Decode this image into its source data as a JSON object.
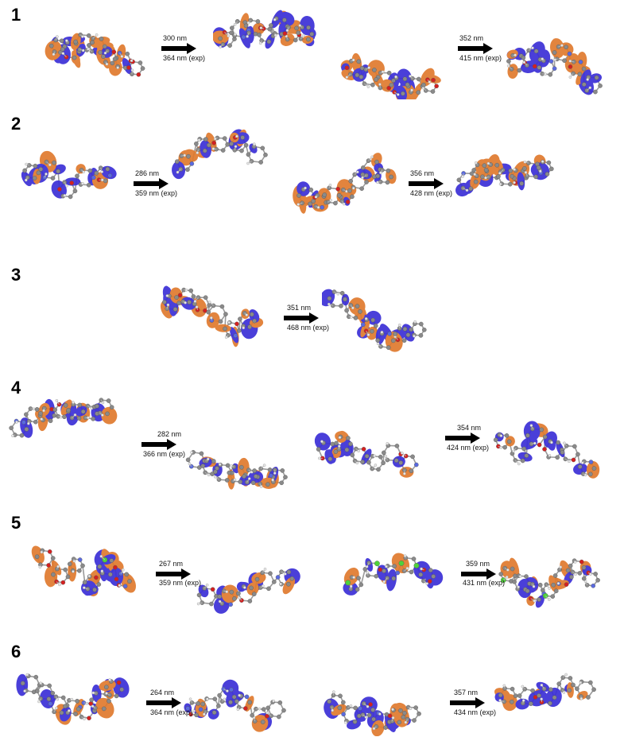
{
  "rows": [
    {
      "id": "1",
      "label": "1",
      "transitions": [
        {
          "calc": "300 nm",
          "exp": "364 nm (exp)"
        },
        {
          "calc": "352 nm",
          "exp": "415 nm (exp)"
        }
      ]
    },
    {
      "id": "2",
      "label": "2",
      "transitions": [
        {
          "calc": "286 nm",
          "exp": "359 nm (exp)"
        },
        {
          "calc": "356 nm",
          "exp": "428 nm (exp)"
        }
      ]
    },
    {
      "id": "3",
      "label": "3",
      "transitions": [
        {
          "calc": "351 nm",
          "exp": "468 nm (exp)"
        }
      ]
    },
    {
      "id": "4",
      "label": "4",
      "transitions": [
        {
          "calc": "282 nm",
          "exp": "366 nm (exp)"
        },
        {
          "calc": "354 nm",
          "exp": "424 nm (exp)"
        }
      ]
    },
    {
      "id": "5",
      "label": "5",
      "transitions": [
        {
          "calc": "267 nm",
          "exp": "359 nm (exp)"
        },
        {
          "calc": "359 nm",
          "exp": "431 nm (exp)"
        }
      ]
    },
    {
      "id": "6",
      "label": "6",
      "transitions": [
        {
          "calc": "264 nm",
          "exp": "364 nm (exp)"
        },
        {
          "calc": "357 nm",
          "exp": "434 nm (exp)"
        }
      ]
    }
  ],
  "colors": {
    "orbital_positive": "#e07a2e",
    "orbital_negative": "#3b2fd6",
    "carbon": "#8a8a8a",
    "hydrogen": "#e8e8e8",
    "oxygen": "#d42020",
    "nitrogen": "#5a6adf",
    "chlorine": "#4fd23a",
    "arrow": "#000000"
  }
}
